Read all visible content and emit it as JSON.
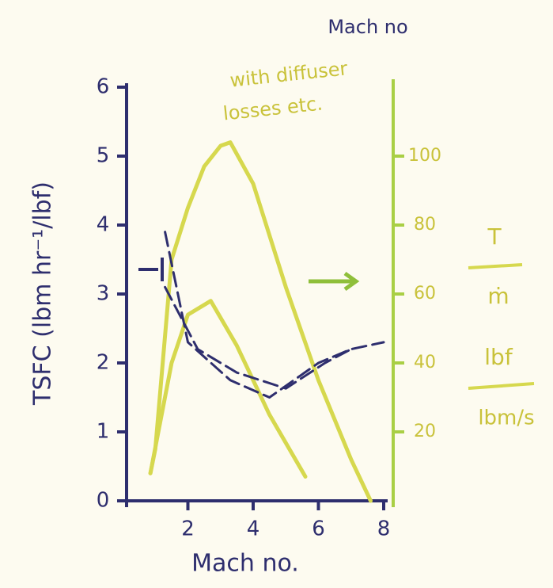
{
  "chart_data": {
    "type": "line",
    "x_label": "Mach no.",
    "y_label": "TSFC (lbm hr⁻¹/lbf)",
    "y2_label": {
      "top_numerator": "T",
      "top_denominator": "ṁ",
      "bottom_numerator": "lbf",
      "bottom_denominator": "lbm/s"
    },
    "annotations": [
      "Mach no",
      "with diffuser",
      "losses etc."
    ],
    "xlim": [
      0,
      8
    ],
    "xticks": [
      2,
      4,
      6,
      8
    ],
    "ylim": [
      0,
      6
    ],
    "yticks": [
      0,
      1,
      2,
      3,
      4,
      5,
      6
    ],
    "y2lim": [
      0,
      120
    ],
    "y2ticks": [
      20,
      40,
      60,
      80,
      100
    ],
    "grid": false,
    "series": [
      {
        "color": "#d6d84e",
        "dashed": false,
        "axis": "y2",
        "x": [
          0.85,
          1.0,
          1.5,
          2.0,
          2.5,
          3.0,
          3.3,
          4.0,
          5.0,
          6.0,
          7.0,
          7.6
        ],
        "values": [
          8,
          15,
          70,
          85,
          97,
          103,
          104,
          92,
          62,
          35,
          12,
          0
        ]
      },
      {
        "color": "#d6d84e",
        "dashed": false,
        "axis": "y2",
        "x": [
          0.85,
          1.5,
          2.0,
          2.7,
          3.5,
          4.5,
          5.6
        ],
        "values": [
          8,
          40,
          54,
          58,
          45,
          25,
          7
        ]
      },
      {
        "color": "#2e2e6e",
        "dashed": true,
        "axis": "y",
        "x": [
          1.3,
          2.0,
          3.3,
          4.5,
          6.0,
          7.0,
          8.0
        ],
        "values": [
          3.9,
          2.3,
          1.75,
          1.5,
          2.0,
          2.2,
          2.3
        ]
      },
      {
        "color": "#2e2e6e",
        "dashed": true,
        "axis": "y",
        "x": [
          1.3,
          2.3,
          3.5,
          5.0,
          6.2,
          7.0
        ],
        "values": [
          3.1,
          2.2,
          1.86,
          1.63,
          2.0,
          2.2
        ]
      }
    ]
  }
}
